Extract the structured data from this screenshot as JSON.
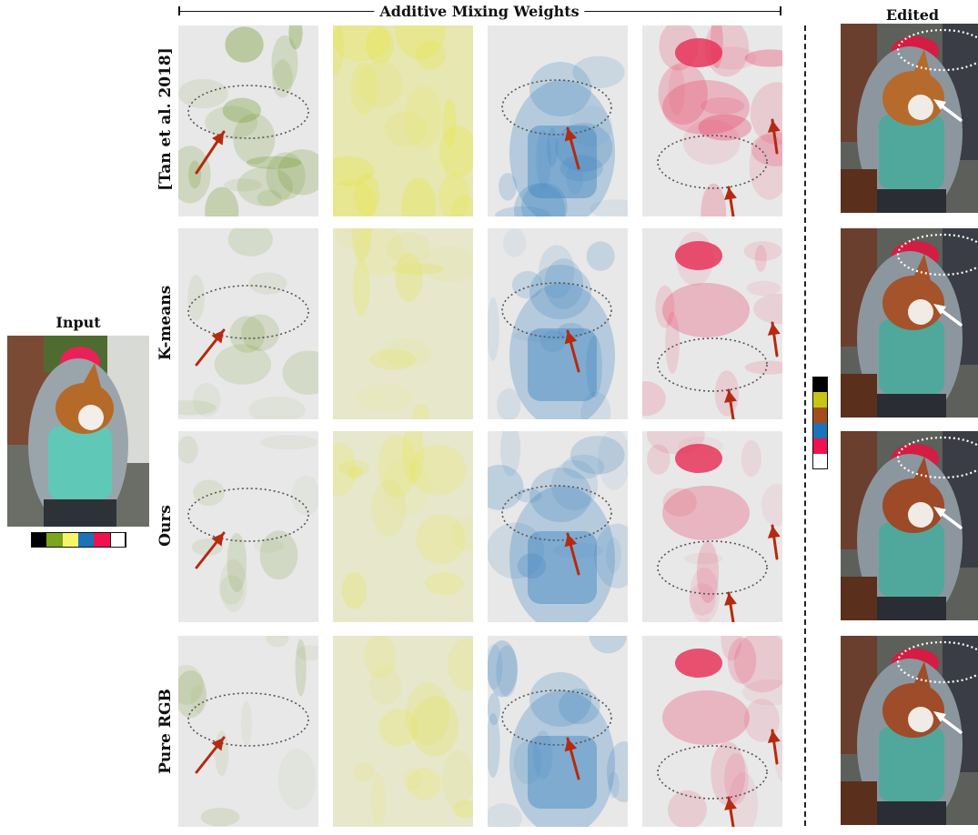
{
  "header": {
    "additive_title": "Additive Mixing Weights",
    "input_title": "Input",
    "edited_title": "Edited"
  },
  "rows": [
    {
      "label": "[Tan et al. 2018]"
    },
    {
      "label": "K-means"
    },
    {
      "label": "Ours"
    },
    {
      "label": "Pure RGB"
    }
  ],
  "layers": [
    {
      "name": "green-layer",
      "color": "#7a9e3a"
    },
    {
      "name": "yellow-layer",
      "color": "#e6e64a"
    },
    {
      "name": "blue-layer",
      "color": "#3f86c0"
    },
    {
      "name": "red-layer",
      "color": "#e8355a"
    }
  ],
  "input_palette": [
    "#000000",
    "#7aa51c",
    "#f5f56a",
    "#1c73b8",
    "#f0124e",
    "#ffffff"
  ],
  "edited_palette": [
    "#000000",
    "#c9c515",
    "#a64c1a",
    "#1c73b8",
    "#f0124e",
    "#ffffff"
  ],
  "annotation_colors": {
    "arrow": "#b52a10",
    "ellipse": "#555555",
    "edited_ellipse": "#ffffff"
  }
}
